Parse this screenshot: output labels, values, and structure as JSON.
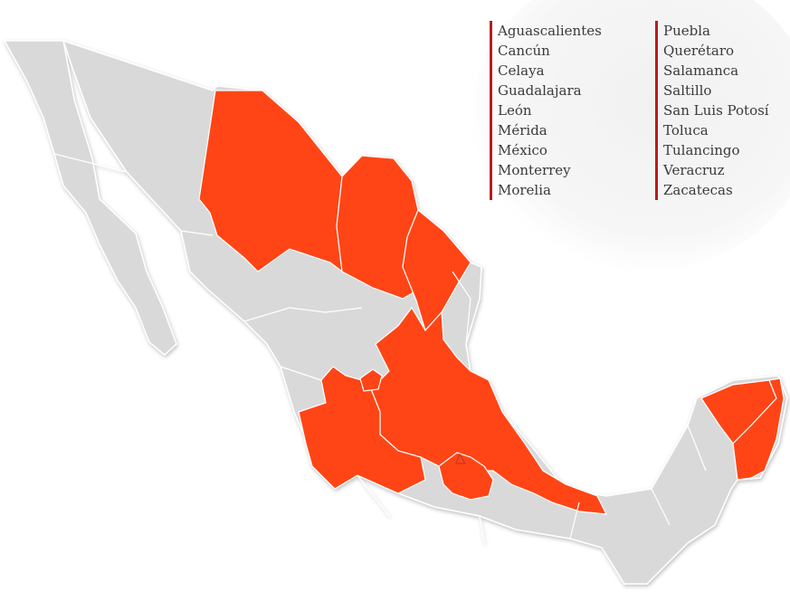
{
  "colors": {
    "highlight": "#ff4516",
    "land": "#d9d9d9",
    "border": "#ffffff",
    "legend_bar": "#b71c1c",
    "text": "#3a3a3a"
  },
  "legend": {
    "column1": [
      "Aguascalientes",
      "Cancún",
      "Celaya",
      "Guadalajara",
      "León",
      "Mérida",
      "México",
      "Monterrey",
      "Morelia"
    ],
    "column2": [
      "Puebla",
      "Querétaro",
      "Salamanca",
      "Saltillo",
      "San Luis Potosí",
      "Toluca",
      "Tulancingo",
      "Veracruz",
      "Zacatecas"
    ]
  }
}
